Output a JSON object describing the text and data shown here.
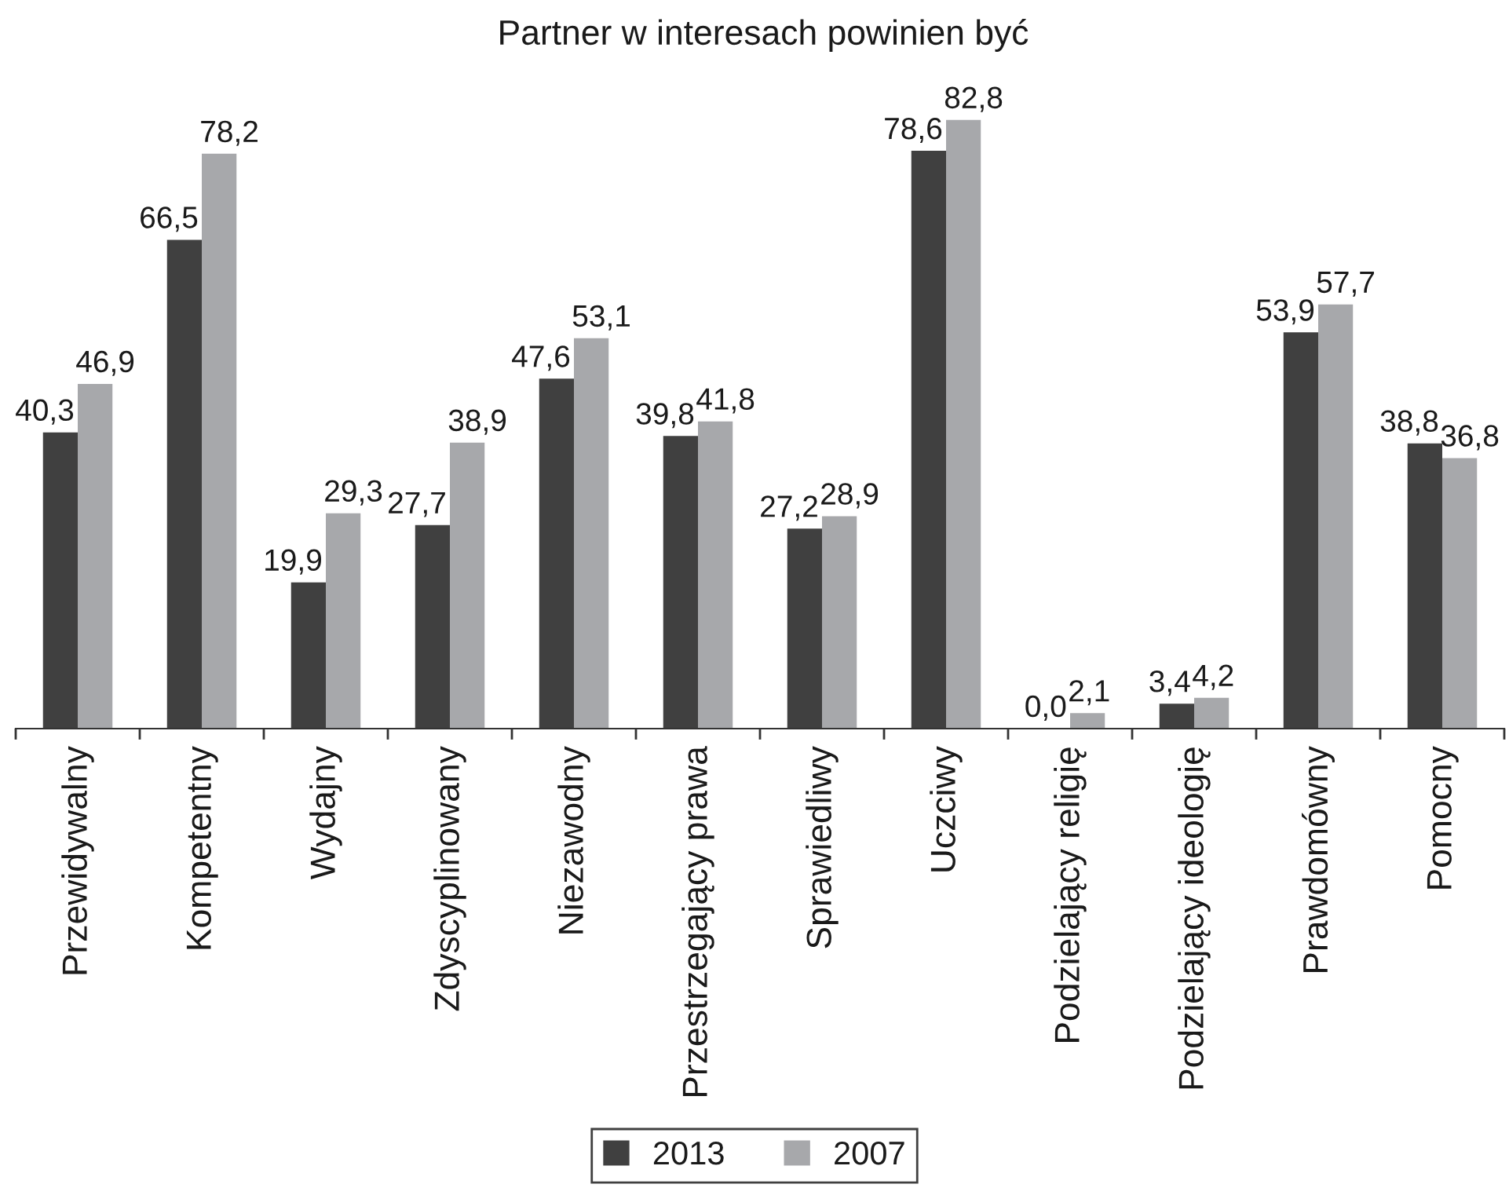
{
  "chart_data": {
    "type": "bar",
    "title": "Partner w interesach powinien być",
    "categories": [
      "Przewidywalny",
      "Kompetentny",
      "Wydajny",
      "Zdyscyplinowany",
      "Niezawodny",
      "Przestrzegający prawa",
      "Sprawiedliwy",
      "Uczciwy",
      "Podzielający religię",
      "Podzielający ideologię",
      "Prawdomówny",
      "Pomocny"
    ],
    "series": [
      {
        "name": "2013",
        "color": "#404040",
        "values": [
          40.3,
          66.5,
          19.9,
          27.7,
          47.6,
          39.8,
          27.2,
          78.6,
          0.0,
          3.4,
          53.9,
          38.8
        ],
        "value_labels": [
          "40,3",
          "66,5",
          "19,9",
          "27,7",
          "47,6",
          "39,8",
          "27,2",
          "78,6",
          "0,0",
          "3,4",
          "53,9",
          "38,8"
        ]
      },
      {
        "name": "2007",
        "color": "#a7a8ab",
        "values": [
          46.9,
          78.2,
          29.3,
          38.9,
          53.1,
          41.8,
          28.9,
          82.8,
          2.1,
          4.2,
          57.7,
          36.8
        ],
        "value_labels": [
          "46,9",
          "78,2",
          "29,3",
          "38,9",
          "53,1",
          "41,8",
          "28,9",
          "82,8",
          "2,1",
          "4,2",
          "57,7",
          "36,8"
        ]
      }
    ],
    "legend": "bottom"
  }
}
